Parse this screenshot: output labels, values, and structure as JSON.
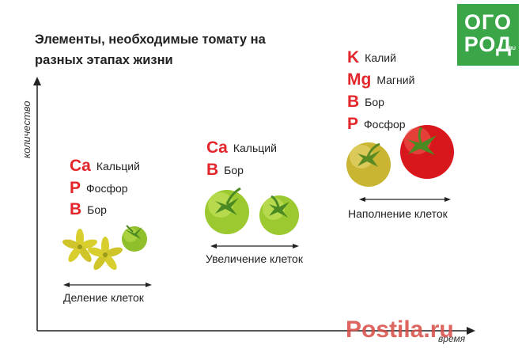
{
  "title": "Элементы, необходимые томату на разных этапах жизни",
  "logo": {
    "line1": "ОГО",
    "line2": "РОД",
    "mark": "RU"
  },
  "axes": {
    "y_label": "количество",
    "x_label": "время"
  },
  "stages": [
    {
      "label": "Деление клеток",
      "elements": [
        {
          "symbol": "Ca",
          "name": "Кальций"
        },
        {
          "symbol": "P",
          "name": "Фосфор"
        },
        {
          "symbol": "B",
          "name": "Бор"
        }
      ]
    },
    {
      "label": "Увеличение клеток",
      "elements": [
        {
          "symbol": "Ca",
          "name": "Кальций"
        },
        {
          "symbol": "B",
          "name": "Бор"
        }
      ]
    },
    {
      "label": "Наполнение клеток",
      "elements": [
        {
          "symbol": "K",
          "name": "Калий"
        },
        {
          "symbol": "Mg",
          "name": "Магний"
        },
        {
          "symbol": "B",
          "name": "Бор"
        },
        {
          "symbol": "P",
          "name": "Фосфор"
        }
      ]
    }
  ],
  "watermark": "Postila.ru",
  "colors": {
    "accent": "#e3262b",
    "logo_bg": "#3aa647",
    "green_tomato": "#9ccc2e",
    "red_tomato": "#d9141b",
    "flower": "#d4c92a"
  }
}
